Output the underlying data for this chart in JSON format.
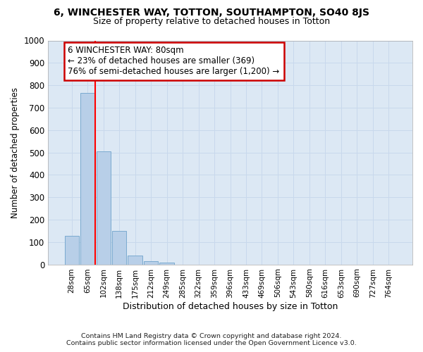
{
  "title": "6, WINCHESTER WAY, TOTTON, SOUTHAMPTON, SO40 8JS",
  "subtitle": "Size of property relative to detached houses in Totton",
  "xlabel": "Distribution of detached houses by size in Totton",
  "ylabel": "Number of detached properties",
  "bin_labels": [
    "28sqm",
    "65sqm",
    "102sqm",
    "138sqm",
    "175sqm",
    "212sqm",
    "249sqm",
    "285sqm",
    "322sqm",
    "359sqm",
    "396sqm",
    "433sqm",
    "469sqm",
    "506sqm",
    "543sqm",
    "580sqm",
    "616sqm",
    "653sqm",
    "690sqm",
    "727sqm",
    "764sqm"
  ],
  "bar_values": [
    128,
    765,
    505,
    150,
    38,
    15,
    8,
    0,
    0,
    0,
    0,
    0,
    0,
    0,
    0,
    0,
    0,
    0,
    0,
    0,
    0
  ],
  "bar_color": "#b8cfe8",
  "bar_edge_color": "#7aaad0",
  "bar_edge_width": 0.7,
  "ylim": [
    0,
    1000
  ],
  "yticks": [
    0,
    100,
    200,
    300,
    400,
    500,
    600,
    700,
    800,
    900,
    1000
  ],
  "grid_color": "#c8d8ec",
  "background_color": "#dce8f4",
  "red_line_x": 1.5,
  "annotation_line1": "6 WINCHESTER WAY: 80sqm",
  "annotation_line2": "← 23% of detached houses are smaller (369)",
  "annotation_line3": "76% of semi-detached houses are larger (1,200) →",
  "annotation_box_edgecolor": "#cc0000",
  "footnote1": "Contains HM Land Registry data © Crown copyright and database right 2024.",
  "footnote2": "Contains public sector information licensed under the Open Government Licence v3.0."
}
